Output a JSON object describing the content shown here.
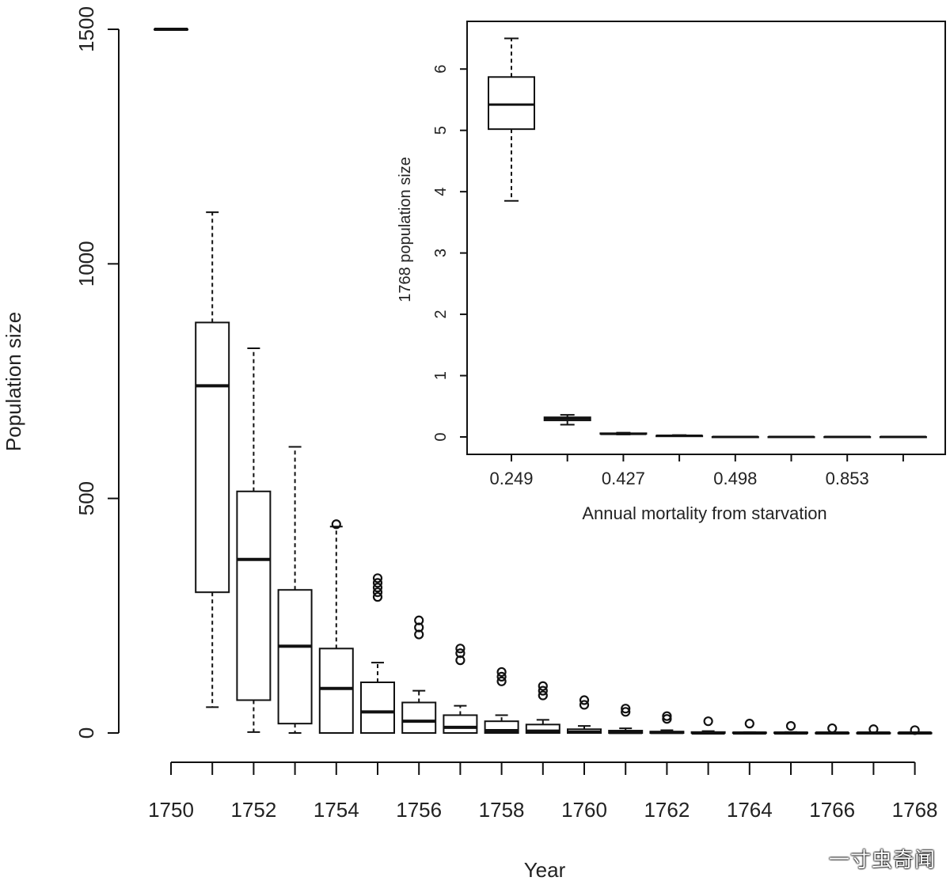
{
  "chart_data": [
    {
      "type": "boxplot",
      "xlabel": "Year",
      "ylabel": "Population size",
      "ylim": [
        0,
        1500
      ],
      "y_ticks": [
        0,
        500,
        1000,
        1500
      ],
      "x_tick_labels": [
        "1750",
        "1752",
        "1754",
        "1756",
        "1758",
        "1760",
        "1762",
        "1764",
        "1766",
        "1768"
      ],
      "boxes": [
        {
          "year": 1750,
          "min": 1500,
          "q1": 1500,
          "median": 1500,
          "q3": 1500,
          "max": 1500,
          "outliers": []
        },
        {
          "year": 1751,
          "min": 55,
          "q1": 300,
          "median": 740,
          "q3": 875,
          "max": 1110,
          "outliers": []
        },
        {
          "year": 1752,
          "min": 2,
          "q1": 70,
          "median": 370,
          "q3": 515,
          "max": 820,
          "outliers": []
        },
        {
          "year": 1753,
          "min": 0,
          "q1": 20,
          "median": 185,
          "q3": 305,
          "max": 610,
          "outliers": []
        },
        {
          "year": 1754,
          "min": 0,
          "q1": 0,
          "median": 95,
          "q3": 180,
          "max": 440,
          "outliers": [
            445
          ]
        },
        {
          "year": 1755,
          "min": 0,
          "q1": 0,
          "median": 45,
          "q3": 108,
          "max": 150,
          "outliers": [
            290,
            300,
            310,
            320,
            330
          ]
        },
        {
          "year": 1756,
          "min": 0,
          "q1": 0,
          "median": 25,
          "q3": 65,
          "max": 90,
          "outliers": [
            210,
            225,
            240
          ]
        },
        {
          "year": 1757,
          "min": 0,
          "q1": 0,
          "median": 12,
          "q3": 38,
          "max": 58,
          "outliers": [
            155,
            170,
            180
          ]
        },
        {
          "year": 1758,
          "min": 0,
          "q1": 0,
          "median": 5,
          "q3": 25,
          "max": 38,
          "outliers": [
            110,
            120,
            130
          ]
        },
        {
          "year": 1759,
          "min": 0,
          "q1": 0,
          "median": 4,
          "q3": 18,
          "max": 28,
          "outliers": [
            80,
            90,
            100
          ]
        },
        {
          "year": 1760,
          "min": 0,
          "q1": 0,
          "median": 2,
          "q3": 8,
          "max": 15,
          "outliers": [
            60,
            70
          ]
        },
        {
          "year": 1761,
          "min": 0,
          "q1": 0,
          "median": 1,
          "q3": 5,
          "max": 10,
          "outliers": [
            45,
            52
          ]
        },
        {
          "year": 1762,
          "min": 0,
          "q1": 0,
          "median": 1,
          "q3": 3,
          "max": 6,
          "outliers": [
            30,
            36
          ]
        },
        {
          "year": 1763,
          "min": 0,
          "q1": 0,
          "median": 0,
          "q3": 2,
          "max": 4,
          "outliers": [
            25
          ]
        },
        {
          "year": 1764,
          "min": 0,
          "q1": 0,
          "median": 0,
          "q3": 1,
          "max": 2,
          "outliers": [
            20
          ]
        },
        {
          "year": 1765,
          "min": 0,
          "q1": 0,
          "median": 0,
          "q3": 1,
          "max": 2,
          "outliers": [
            15
          ]
        },
        {
          "year": 1766,
          "min": 0,
          "q1": 0,
          "median": 0,
          "q3": 0,
          "max": 1,
          "outliers": [
            10
          ]
        },
        {
          "year": 1767,
          "min": 0,
          "q1": 0,
          "median": 0,
          "q3": 0,
          "max": 1,
          "outliers": [
            8
          ]
        },
        {
          "year": 1768,
          "min": 0,
          "q1": 0,
          "median": 0,
          "q3": 0,
          "max": 0,
          "outliers": [
            6
          ]
        }
      ]
    },
    {
      "type": "boxplot",
      "inset": true,
      "xlabel": "Annual mortality from starvation",
      "ylabel": "1768 population size",
      "ylim": [
        0,
        6.5
      ],
      "y_ticks": [
        0,
        1,
        2,
        3,
        4,
        5,
        6
      ],
      "x_tick_labels": [
        "0.249",
        "0.427",
        "0.498",
        "0.853"
      ],
      "boxes": [
        {
          "min": 3.85,
          "q1": 5.02,
          "median": 5.42,
          "q3": 5.87,
          "max": 6.5
        },
        {
          "min": 0.2,
          "q1": 0.27,
          "median": 0.3,
          "q3": 0.32,
          "max": 0.36
        },
        {
          "min": 0.04,
          "q1": 0.05,
          "median": 0.05,
          "q3": 0.06,
          "max": 0.07
        },
        {
          "min": 0.01,
          "q1": 0.01,
          "median": 0.02,
          "q3": 0.02,
          "max": 0.03
        },
        {
          "min": 0,
          "q1": 0,
          "median": 0,
          "q3": 0,
          "max": 0
        },
        {
          "min": 0,
          "q1": 0,
          "median": 0,
          "q3": 0,
          "max": 0
        },
        {
          "min": 0,
          "q1": 0,
          "median": 0,
          "q3": 0,
          "max": 0
        },
        {
          "min": 0,
          "q1": 0,
          "median": 0,
          "q3": 0,
          "max": 0
        }
      ]
    }
  ],
  "watermark": "一寸虫奇闻"
}
